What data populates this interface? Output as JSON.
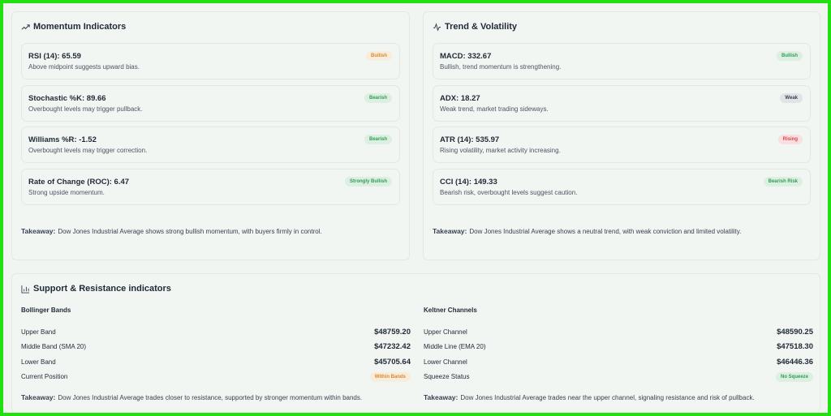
{
  "momentum": {
    "title": "Momentum Indicators",
    "icon": "trending-up-icon",
    "cards": [
      {
        "title": "RSI (14): 65.59",
        "desc": "Above midpoint suggests upward bias.",
        "badge": "Bullish",
        "badge_color": "#d98a2b"
      },
      {
        "title": "Stochastic %K: 89.66",
        "desc": "Overbought levels may trigger pullback.",
        "badge": "Bearish",
        "badge_color": "#2f9e55"
      },
      {
        "title": "Williams %R: -1.52",
        "desc": "Overbought levels may trigger correction.",
        "badge": "Bearish",
        "badge_color": "#2f9e55"
      },
      {
        "title": "Rate of Change (ROC): 6.47",
        "desc": "Strong upside momentum.",
        "badge": "Strongly Bullish",
        "badge_color": "#2f9e55"
      }
    ],
    "takeaway_label": "Takeaway:",
    "takeaway": "Dow Jones Industrial Average shows strong bullish momentum, with buyers firmly in control."
  },
  "trend": {
    "title": "Trend & Volatility",
    "icon": "activity-icon",
    "cards": [
      {
        "title": "MACD: 332.67",
        "desc": "Bullish, trend momentum is strengthening.",
        "badge": "Bullish",
        "badge_color": "#2f9e55"
      },
      {
        "title": "ADX: 18.27",
        "desc": "Weak trend, market trading sideways.",
        "badge": "Weak",
        "badge_color": "#374151"
      },
      {
        "title": "ATR (14): 535.97",
        "desc": "Rising volatility, market activity increasing.",
        "badge": "Rising",
        "badge_color": "#e0424a"
      },
      {
        "title": "CCI (14): 149.33",
        "desc": "Bearish risk, overbought levels suggest caution.",
        "badge": "Bearish Risk",
        "badge_color": "#2f9e55"
      }
    ],
    "takeaway_label": "Takeaway:",
    "takeaway": "Dow Jones Industrial Average shows a neutral trend, with weak conviction and limited volatility."
  },
  "support": {
    "title": "Support & Resistance indicators",
    "icon": "bar-chart-icon",
    "bollinger": {
      "title": "Bollinger Bands",
      "rows": [
        {
          "label": "Upper Band",
          "value": "$48759.20"
        },
        {
          "label": "Middle Band (SMA 20)",
          "value": "$47232.42"
        },
        {
          "label": "Lower Band",
          "value": "$45705.64"
        }
      ],
      "status_label": "Current Position",
      "status_badge": "Within Bands",
      "takeaway_label": "Takeaway:",
      "takeaway": "Dow Jones Industrial Average trades closer to resistance, supported by stronger momentum within bands."
    },
    "keltner": {
      "title": "Keltner Channels",
      "rows": [
        {
          "label": "Upper Channel",
          "value": "$48590.25"
        },
        {
          "label": "Middle Line (EMA 20)",
          "value": "$47518.30"
        },
        {
          "label": "Lower Channel",
          "value": "$46446.36"
        }
      ],
      "status_label": "Squeeze Status",
      "status_badge": "No Squeeze",
      "takeaway_label": "Takeaway:",
      "takeaway": "Dow Jones Industrial Average trades near the upper channel, signaling resistance and risk of pullback."
    }
  },
  "colors": {
    "frame": "#22e010",
    "bullish_orange": "#d98a2b",
    "green": "#2f9e55",
    "red": "#e0424a"
  }
}
